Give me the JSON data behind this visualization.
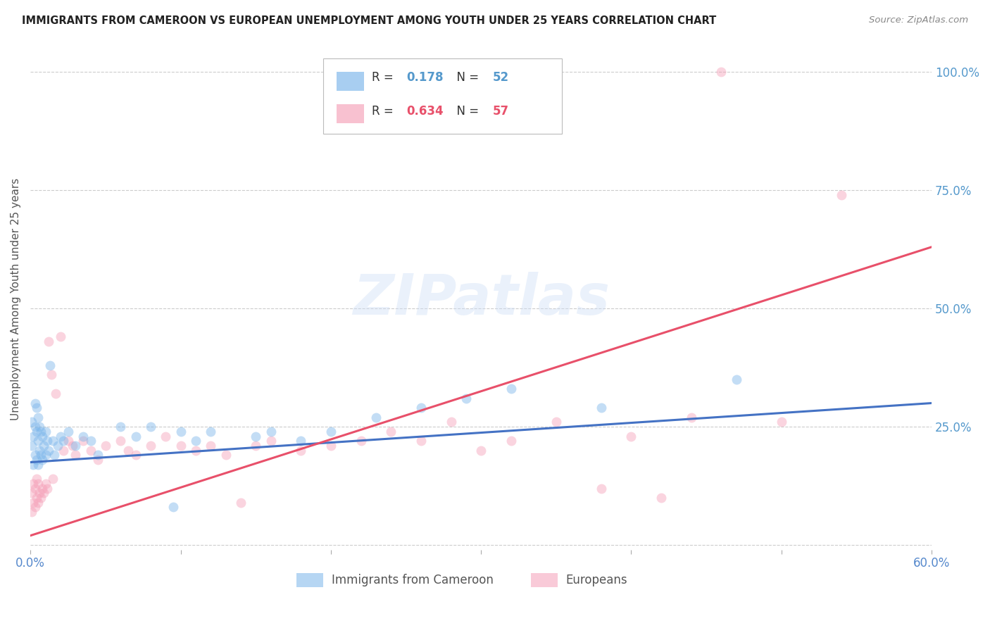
{
  "title": "IMMIGRANTS FROM CAMEROON VS EUROPEAN UNEMPLOYMENT AMONG YOUTH UNDER 25 YEARS CORRELATION CHART",
  "source": "Source: ZipAtlas.com",
  "ylabel": "Unemployment Among Youth under 25 years",
  "xlim": [
    0.0,
    0.6
  ],
  "ylim": [
    -0.01,
    1.05
  ],
  "xticks": [
    0.0,
    0.1,
    0.2,
    0.3,
    0.4,
    0.5,
    0.6
  ],
  "xticklabels": [
    "0.0%",
    "",
    "",
    "",
    "",
    "",
    "60.0%"
  ],
  "yticks": [
    0.0,
    0.25,
    0.5,
    0.75,
    1.0
  ],
  "yticklabels_right": [
    "",
    "25.0%",
    "50.0%",
    "75.0%",
    "100.0%"
  ],
  "watermark": "ZIPatlas",
  "blue_color": "#7ab5ea",
  "pink_color": "#f5a0b8",
  "blue_line_color": "#4472c4",
  "pink_line_color": "#e8506a",
  "blue_scatter_x": [
    0.001,
    0.001,
    0.002,
    0.002,
    0.003,
    0.003,
    0.003,
    0.004,
    0.004,
    0.004,
    0.005,
    0.005,
    0.005,
    0.006,
    0.006,
    0.007,
    0.007,
    0.008,
    0.008,
    0.009,
    0.01,
    0.01,
    0.011,
    0.012,
    0.013,
    0.015,
    0.016,
    0.018,
    0.02,
    0.022,
    0.025,
    0.03,
    0.035,
    0.04,
    0.045,
    0.06,
    0.07,
    0.08,
    0.095,
    0.1,
    0.11,
    0.12,
    0.15,
    0.16,
    0.18,
    0.2,
    0.23,
    0.26,
    0.29,
    0.32,
    0.38,
    0.47
  ],
  "blue_scatter_y": [
    0.21,
    0.26,
    0.17,
    0.23,
    0.19,
    0.25,
    0.3,
    0.18,
    0.24,
    0.29,
    0.17,
    0.22,
    0.27,
    0.2,
    0.25,
    0.19,
    0.24,
    0.18,
    0.23,
    0.21,
    0.19,
    0.24,
    0.22,
    0.2,
    0.38,
    0.22,
    0.19,
    0.21,
    0.23,
    0.22,
    0.24,
    0.21,
    0.23,
    0.22,
    0.19,
    0.25,
    0.23,
    0.25,
    0.08,
    0.24,
    0.22,
    0.24,
    0.23,
    0.24,
    0.22,
    0.24,
    0.27,
    0.29,
    0.31,
    0.33,
    0.29,
    0.35
  ],
  "pink_scatter_x": [
    0.001,
    0.001,
    0.002,
    0.002,
    0.003,
    0.003,
    0.004,
    0.004,
    0.005,
    0.005,
    0.006,
    0.007,
    0.008,
    0.009,
    0.01,
    0.011,
    0.012,
    0.014,
    0.015,
    0.017,
    0.02,
    0.022,
    0.025,
    0.028,
    0.03,
    0.035,
    0.04,
    0.045,
    0.05,
    0.06,
    0.065,
    0.07,
    0.08,
    0.09,
    0.1,
    0.11,
    0.12,
    0.13,
    0.14,
    0.15,
    0.16,
    0.18,
    0.2,
    0.22,
    0.24,
    0.26,
    0.28,
    0.3,
    0.32,
    0.35,
    0.38,
    0.4,
    0.42,
    0.44,
    0.46,
    0.5,
    0.54
  ],
  "pink_scatter_y": [
    0.07,
    0.11,
    0.09,
    0.13,
    0.08,
    0.12,
    0.1,
    0.14,
    0.09,
    0.13,
    0.11,
    0.1,
    0.12,
    0.11,
    0.13,
    0.12,
    0.43,
    0.36,
    0.14,
    0.32,
    0.44,
    0.2,
    0.22,
    0.21,
    0.19,
    0.22,
    0.2,
    0.18,
    0.21,
    0.22,
    0.2,
    0.19,
    0.21,
    0.23,
    0.21,
    0.2,
    0.21,
    0.19,
    0.09,
    0.21,
    0.22,
    0.2,
    0.21,
    0.22,
    0.24,
    0.22,
    0.26,
    0.2,
    0.22,
    0.26,
    0.12,
    0.23,
    0.1,
    0.27,
    1.0,
    0.26,
    0.74
  ],
  "blue_line_x": [
    0.0,
    0.6
  ],
  "blue_line_y": [
    0.175,
    0.3
  ],
  "pink_line_x": [
    0.0,
    0.6
  ],
  "pink_line_y": [
    0.02,
    0.63
  ],
  "grid_color": "#cccccc",
  "background_color": "#ffffff",
  "scatter_size": 100,
  "scatter_alpha": 0.45,
  "legend_fontsize": 12,
  "title_fontsize": 10.5,
  "ylabel_fontsize": 11
}
